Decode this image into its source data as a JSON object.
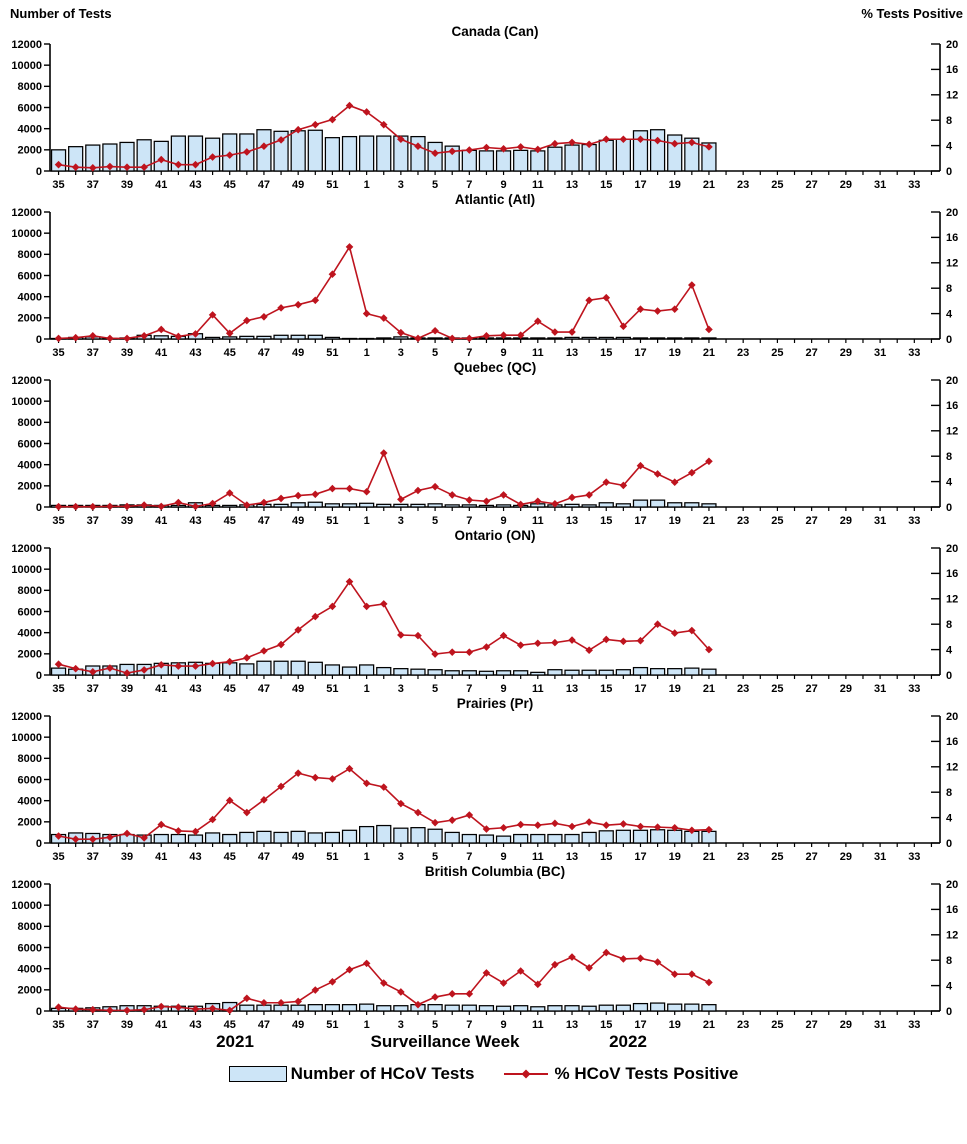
{
  "page": {
    "left_axis_header": "Number of Tests",
    "right_axis_header": "%  Tests Positive",
    "x_axis_title": "Surveillance Week",
    "year_left": "2021",
    "year_right": "2022",
    "legend": {
      "bars": "Number of HCoV Tests",
      "line": "% HCoV Tests Positive"
    }
  },
  "colors": {
    "bar_fill": "#CDE5F7",
    "bar_stroke": "#000000",
    "line": "#BE141E",
    "axis": "#000000"
  },
  "chart_data": {
    "type": "bar-line-combo",
    "x_axis": {
      "weeks": [
        35,
        36,
        37,
        38,
        39,
        40,
        41,
        42,
        43,
        44,
        45,
        46,
        47,
        48,
        49,
        50,
        51,
        52,
        1,
        2,
        3,
        4,
        5,
        6,
        7,
        8,
        9,
        10,
        11,
        12,
        13,
        14,
        15,
        16,
        17,
        18,
        19,
        20,
        21,
        22,
        23,
        24,
        25,
        26,
        27,
        28,
        29,
        30,
        31,
        32,
        33,
        34
      ],
      "labeled_weeks": [
        35,
        37,
        39,
        41,
        43,
        45,
        47,
        49,
        51,
        1,
        3,
        5,
        7,
        9,
        11,
        13,
        15,
        17,
        19,
        21,
        23,
        25,
        27,
        29,
        31,
        33
      ],
      "data_weeks_count": 39,
      "title": "Surveillance Week",
      "year_segments": [
        "2021",
        "2022"
      ]
    },
    "left_axis": {
      "label": "Number of Tests",
      "lim": [
        0,
        12000
      ],
      "ticks": [
        0,
        2000,
        4000,
        6000,
        8000,
        10000,
        12000
      ]
    },
    "right_axis": {
      "label": "% Tests Positive",
      "lim": [
        0,
        20
      ],
      "ticks": [
        0,
        4,
        8,
        12,
        16,
        20
      ]
    },
    "series_names": {
      "bars": "Number of HCoV Tests",
      "line": "% HCoV Tests Positive"
    },
    "panels": [
      {
        "title": "Canada (Can)",
        "bars": [
          2000,
          2300,
          2450,
          2550,
          2700,
          2950,
          2800,
          3300,
          3300,
          3100,
          3500,
          3500,
          3900,
          3750,
          3800,
          3850,
          3150,
          3250,
          3300,
          3300,
          3300,
          3250,
          2700,
          2350,
          1950,
          1900,
          1900,
          1950,
          1900,
          2250,
          2450,
          2500,
          2900,
          3000,
          3800,
          3900,
          3400,
          3100,
          2650
        ],
        "line": [
          1.0,
          0.6,
          0.5,
          0.7,
          0.6,
          0.6,
          1.8,
          1.0,
          1.0,
          2.2,
          2.5,
          3.0,
          3.9,
          4.9,
          6.5,
          7.3,
          8.1,
          10.3,
          9.3,
          7.3,
          5.0,
          3.9,
          2.8,
          3.1,
          3.3,
          3.7,
          3.5,
          3.8,
          3.4,
          4.3,
          4.5,
          4.2,
          5.0,
          5.0,
          5.0,
          4.8,
          4.3,
          4.5,
          3.8
        ]
      },
      {
        "title": "Atlantic (Atl)",
        "bars": [
          50,
          150,
          200,
          50,
          100,
          350,
          300,
          250,
          500,
          150,
          200,
          250,
          250,
          350,
          350,
          350,
          150,
          50,
          50,
          100,
          200,
          100,
          100,
          100,
          100,
          100,
          100,
          100,
          100,
          100,
          150,
          150,
          150,
          150,
          100,
          100,
          100,
          100,
          100
        ],
        "line": [
          0.1,
          0.2,
          0.5,
          0.1,
          0.1,
          0.5,
          1.5,
          0.4,
          0.8,
          3.8,
          0.9,
          2.9,
          3.5,
          4.9,
          5.4,
          6.1,
          10.2,
          14.5,
          4.0,
          3.3,
          1.0,
          0.1,
          1.3,
          0.1,
          0.1,
          0.5,
          0.6,
          0.6,
          2.8,
          1.1,
          1.1,
          6.1,
          6.5,
          2.0,
          4.7,
          4.4,
          4.7,
          8.5,
          1.5
        ]
      },
      {
        "title": "Quebec (QC)",
        "bars": [
          150,
          150,
          150,
          150,
          200,
          200,
          150,
          150,
          400,
          150,
          150,
          200,
          250,
          250,
          400,
          450,
          300,
          300,
          350,
          250,
          250,
          250,
          300,
          200,
          200,
          150,
          200,
          150,
          300,
          200,
          250,
          200,
          400,
          300,
          650,
          650,
          400,
          400,
          300
        ],
        "line": [
          0.05,
          0.05,
          0.05,
          0.1,
          0.1,
          0.3,
          0.1,
          0.7,
          0.1,
          0.55,
          2.2,
          0.3,
          0.7,
          1.35,
          1.8,
          2.0,
          2.9,
          2.9,
          2.4,
          8.5,
          1.2,
          2.6,
          3.2,
          1.9,
          1.1,
          0.9,
          1.9,
          0.4,
          0.9,
          0.5,
          1.5,
          1.9,
          3.9,
          3.4,
          6.5,
          5.2,
          3.9,
          5.4,
          7.2
        ]
      },
      {
        "title": "Ontario (ON)",
        "bars": [
          650,
          550,
          850,
          850,
          1000,
          1000,
          1100,
          1150,
          1200,
          1100,
          1150,
          1050,
          1300,
          1300,
          1300,
          1200,
          950,
          750,
          950,
          700,
          600,
          550,
          500,
          400,
          400,
          350,
          400,
          400,
          250,
          500,
          450,
          450,
          450,
          500,
          700,
          600,
          600,
          650,
          550
        ],
        "line": [
          1.7,
          1.0,
          0.5,
          1.1,
          0.3,
          0.8,
          1.6,
          1.4,
          1.4,
          1.8,
          2.1,
          2.7,
          3.8,
          4.8,
          7.1,
          9.2,
          10.8,
          14.7,
          10.8,
          11.2,
          6.3,
          6.2,
          3.3,
          3.6,
          3.6,
          4.4,
          6.2,
          4.7,
          5.0,
          5.1,
          5.5,
          3.9,
          5.6,
          5.3,
          5.4,
          8.0,
          6.6,
          7.0,
          4.0
        ]
      },
      {
        "title": "Prairies (Pr)",
        "bars": [
          800,
          950,
          900,
          800,
          800,
          750,
          800,
          800,
          750,
          950,
          800,
          1000,
          1100,
          1000,
          1100,
          950,
          1000,
          1200,
          1550,
          1650,
          1400,
          1450,
          1300,
          1000,
          800,
          750,
          650,
          800,
          800,
          800,
          800,
          1000,
          1150,
          1200,
          1200,
          1250,
          1200,
          1100,
          1100
        ],
        "line": [
          1.1,
          0.6,
          0.6,
          0.9,
          1.5,
          0.8,
          2.9,
          1.9,
          1.8,
          3.7,
          6.7,
          4.8,
          6.8,
          8.9,
          11.0,
          10.3,
          10.1,
          11.7,
          9.4,
          8.8,
          6.2,
          4.8,
          3.2,
          3.6,
          4.4,
          2.2,
          2.4,
          2.9,
          2.8,
          3.1,
          2.6,
          3.3,
          2.8,
          3.0,
          2.6,
          2.5,
          2.4,
          2.0,
          2.1
        ]
      },
      {
        "title": "British Columbia (BC)",
        "bars": [
          250,
          250,
          300,
          400,
          500,
          500,
          450,
          450,
          450,
          700,
          800,
          550,
          550,
          550,
          550,
          600,
          600,
          600,
          650,
          500,
          500,
          600,
          600,
          550,
          550,
          500,
          450,
          500,
          400,
          500,
          500,
          450,
          550,
          550,
          700,
          750,
          650,
          650,
          600
        ],
        "line": [
          0.6,
          0.3,
          0.2,
          0.1,
          0.1,
          0.2,
          0.7,
          0.6,
          0.3,
          0.4,
          0.1,
          2.0,
          1.3,
          1.3,
          1.5,
          3.3,
          4.6,
          6.5,
          7.5,
          4.4,
          3.0,
          1.0,
          2.2,
          2.7,
          2.7,
          6.0,
          4.4,
          6.3,
          4.2,
          7.3,
          8.5,
          6.8,
          9.2,
          8.2,
          8.3,
          7.7,
          5.8,
          5.8,
          4.5
        ]
      }
    ]
  }
}
